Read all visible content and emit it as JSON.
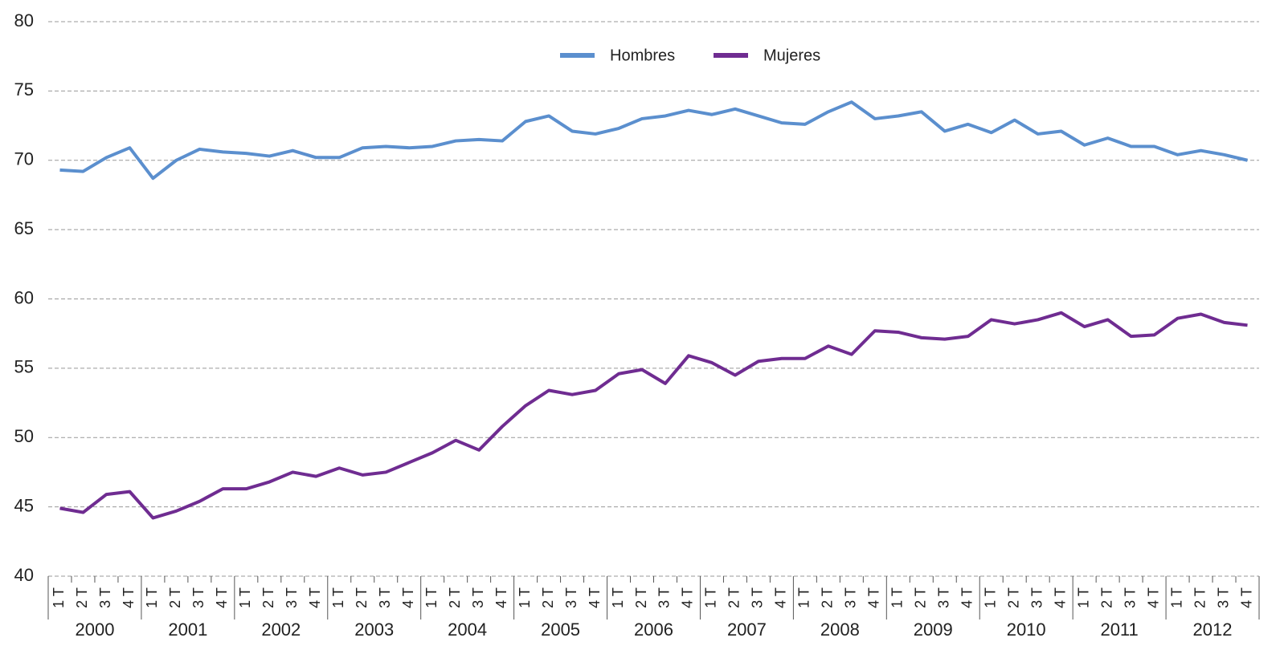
{
  "chart_data": {
    "type": "line",
    "categories": [
      "1 T",
      "2 T",
      "3 T",
      "4 T",
      "1 T",
      "2 T",
      "3 T",
      "4 T",
      "1 T",
      "2 T",
      "3 T",
      "4 T",
      "1 T",
      "2 T",
      "3 T",
      "4 T",
      "1 T",
      "2 T",
      "3 T",
      "4 T",
      "1 T",
      "2 T",
      "3 T",
      "4 T",
      "1 T",
      "2 T",
      "3 T",
      "4 T",
      "1 T",
      "2 T",
      "3 T",
      "4 T",
      "1 T",
      "2 T",
      "3 T",
      "4 T",
      "1 T",
      "2 T",
      "3 T",
      "4 T",
      "1 T",
      "2 T",
      "3 T",
      "4 T",
      "1 T",
      "2 T",
      "3 T",
      "4 T",
      "1 T",
      "2 T",
      "3 T",
      "4 T"
    ],
    "years": [
      "2000",
      "2001",
      "2002",
      "2003",
      "2004",
      "2005",
      "2006",
      "2007",
      "2008",
      "2009",
      "2010",
      "2011",
      "2012"
    ],
    "series": [
      {
        "name": "Hombres",
        "color": "#5b8fce",
        "values": [
          69.3,
          69.2,
          70.2,
          70.9,
          68.7,
          70.0,
          70.8,
          70.6,
          70.5,
          70.3,
          70.7,
          70.2,
          70.2,
          70.9,
          71.0,
          70.9,
          71.0,
          71.4,
          71.5,
          71.4,
          72.8,
          73.2,
          72.1,
          71.9,
          72.3,
          73.0,
          73.2,
          73.6,
          73.3,
          73.7,
          73.2,
          72.7,
          72.6,
          73.5,
          74.2,
          73.0,
          73.2,
          73.5,
          72.1,
          72.6,
          72.0,
          72.9,
          71.9,
          72.1,
          71.1,
          71.6,
          71.0,
          71.0,
          70.4,
          70.7,
          70.4,
          70.0
        ]
      },
      {
        "name": "Mujeres",
        "color": "#6f2c91",
        "values": [
          44.9,
          44.6,
          45.9,
          46.1,
          44.2,
          44.7,
          45.4,
          46.3,
          46.3,
          46.8,
          47.5,
          47.2,
          47.8,
          47.3,
          47.5,
          48.2,
          48.9,
          49.8,
          49.1,
          50.8,
          52.3,
          53.4,
          53.1,
          53.4,
          54.6,
          54.9,
          53.9,
          55.9,
          55.4,
          54.5,
          55.5,
          55.7,
          55.7,
          56.6,
          56.0,
          57.7,
          57.6,
          57.2,
          57.1,
          57.3,
          58.5,
          58.2,
          58.5,
          59.0,
          58.0,
          58.5,
          57.3,
          57.4,
          58.6,
          58.9,
          58.3,
          58.1
        ]
      }
    ],
    "ylim": [
      40,
      80
    ],
    "yticks": [
      40,
      45,
      50,
      55,
      60,
      65,
      70,
      75,
      80
    ],
    "grid": true,
    "legend": "top"
  }
}
